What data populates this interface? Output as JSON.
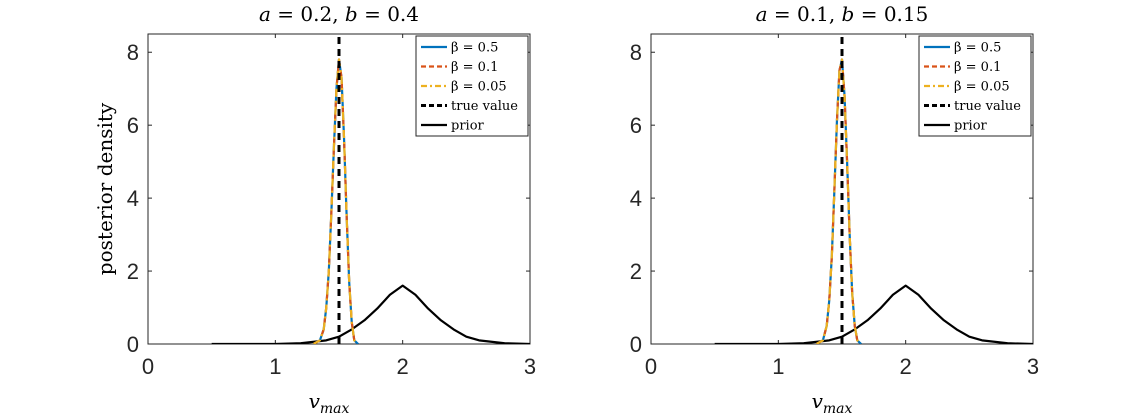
{
  "chart_data": [
    {
      "type": "line",
      "title_parts": [
        "a",
        " = 0.2, ",
        "b",
        " = 0.4"
      ],
      "xlabel_main": "v",
      "xlabel_sub": "max",
      "ylabel": "posterior density",
      "xlim": [
        0,
        3
      ],
      "ylim": [
        0,
        8.5
      ],
      "xticks": [
        "0",
        "1",
        "2",
        "3"
      ],
      "yticks": [
        "0",
        "2",
        "4",
        "6",
        "8"
      ],
      "legend_position": "top-right",
      "true_value": 1.5,
      "series": [
        {
          "name": "β = 0.5",
          "style": "solid",
          "color": "#0072BD",
          "x": [
            1.3,
            1.35,
            1.38,
            1.4,
            1.42,
            1.44,
            1.46,
            1.48,
            1.5,
            1.52,
            1.54,
            1.56,
            1.58,
            1.6,
            1.62,
            1.65
          ],
          "y": [
            0.0,
            0.1,
            0.4,
            1.0,
            2.0,
            3.6,
            5.4,
            7.0,
            7.8,
            7.3,
            5.6,
            3.5,
            1.7,
            0.6,
            0.1,
            0.0
          ]
        },
        {
          "name": "β = 0.1",
          "style": "dashed",
          "color": "#D95319",
          "x": [
            1.3,
            1.35,
            1.38,
            1.4,
            1.42,
            1.44,
            1.46,
            1.48,
            1.5,
            1.52,
            1.54,
            1.56,
            1.58,
            1.6,
            1.62,
            1.65
          ],
          "y": [
            0.0,
            0.1,
            0.4,
            1.0,
            2.0,
            3.6,
            5.4,
            7.0,
            7.8,
            7.3,
            5.6,
            3.5,
            1.7,
            0.6,
            0.1,
            0.0
          ]
        },
        {
          "name": "β = 0.05",
          "style": "dashdot",
          "color": "#EDB120",
          "x": [
            1.3,
            1.35,
            1.38,
            1.4,
            1.42,
            1.44,
            1.46,
            1.48,
            1.5,
            1.52,
            1.54,
            1.56,
            1.58,
            1.6,
            1.62,
            1.65
          ],
          "y": [
            0.0,
            0.1,
            0.4,
            1.0,
            2.0,
            3.6,
            5.4,
            7.0,
            7.8,
            7.3,
            5.6,
            3.5,
            1.7,
            0.6,
            0.1,
            0.0
          ]
        },
        {
          "name": "true value",
          "style": "dashed",
          "color": "#000000",
          "x": [
            1.5,
            1.5
          ],
          "y": [
            0,
            8.5
          ]
        },
        {
          "name": "prior",
          "style": "solid",
          "color": "#000000",
          "x": [
            0.5,
            1.0,
            1.2,
            1.4,
            1.5,
            1.6,
            1.7,
            1.8,
            1.9,
            2.0,
            2.1,
            2.2,
            2.3,
            2.4,
            2.5,
            2.6,
            2.8,
            3.0
          ],
          "y": [
            0.0,
            0.0,
            0.02,
            0.1,
            0.2,
            0.4,
            0.65,
            0.97,
            1.35,
            1.6,
            1.35,
            0.97,
            0.65,
            0.4,
            0.2,
            0.1,
            0.02,
            0.0
          ]
        }
      ]
    },
    {
      "type": "line",
      "title_parts": [
        "a",
        " = 0.1, ",
        "b",
        " = 0.15"
      ],
      "xlabel_main": "v",
      "xlabel_sub": "max",
      "ylabel": "",
      "xlim": [
        0,
        3
      ],
      "ylim": [
        0,
        8.5
      ],
      "xticks": [
        "0",
        "1",
        "2",
        "3"
      ],
      "yticks": [
        "0",
        "2",
        "4",
        "6",
        "8"
      ],
      "legend_position": "top-right",
      "true_value": 1.5,
      "series": [
        {
          "name": "β = 0.5",
          "style": "solid",
          "color": "#0072BD",
          "x": [
            1.3,
            1.35,
            1.38,
            1.4,
            1.42,
            1.44,
            1.46,
            1.48,
            1.5,
            1.52,
            1.54,
            1.56,
            1.58,
            1.6,
            1.62,
            1.65
          ],
          "y": [
            0.0,
            0.1,
            0.5,
            1.2,
            2.4,
            4.2,
            6.1,
            7.5,
            7.8,
            6.8,
            5.0,
            3.0,
            1.4,
            0.5,
            0.1,
            0.0
          ]
        },
        {
          "name": "β = 0.1",
          "style": "dashed",
          "color": "#D95319",
          "x": [
            1.3,
            1.35,
            1.38,
            1.4,
            1.42,
            1.44,
            1.46,
            1.48,
            1.5,
            1.52,
            1.54,
            1.56,
            1.58,
            1.6,
            1.62,
            1.65
          ],
          "y": [
            0.0,
            0.1,
            0.5,
            1.2,
            2.4,
            4.2,
            6.1,
            7.5,
            7.8,
            6.8,
            5.0,
            3.0,
            1.4,
            0.5,
            0.1,
            0.0
          ]
        },
        {
          "name": "β = 0.05",
          "style": "dashdot",
          "color": "#EDB120",
          "x": [
            1.3,
            1.35,
            1.38,
            1.4,
            1.42,
            1.44,
            1.46,
            1.48,
            1.5,
            1.52,
            1.54,
            1.56,
            1.58,
            1.6,
            1.62,
            1.65
          ],
          "y": [
            0.0,
            0.1,
            0.5,
            1.2,
            2.4,
            4.2,
            6.1,
            7.5,
            7.8,
            6.8,
            5.0,
            3.0,
            1.4,
            0.5,
            0.1,
            0.0
          ]
        },
        {
          "name": "true value",
          "style": "dashed",
          "color": "#000000",
          "x": [
            1.5,
            1.5
          ],
          "y": [
            0,
            8.5
          ]
        },
        {
          "name": "prior",
          "style": "solid",
          "color": "#000000",
          "x": [
            0.5,
            1.0,
            1.2,
            1.4,
            1.5,
            1.6,
            1.7,
            1.8,
            1.9,
            2.0,
            2.1,
            2.2,
            2.3,
            2.4,
            2.5,
            2.6,
            2.8,
            3.0
          ],
          "y": [
            0.0,
            0.0,
            0.02,
            0.1,
            0.2,
            0.4,
            0.65,
            0.97,
            1.35,
            1.6,
            1.35,
            0.97,
            0.65,
            0.4,
            0.2,
            0.1,
            0.02,
            0.0
          ]
        }
      ]
    }
  ]
}
